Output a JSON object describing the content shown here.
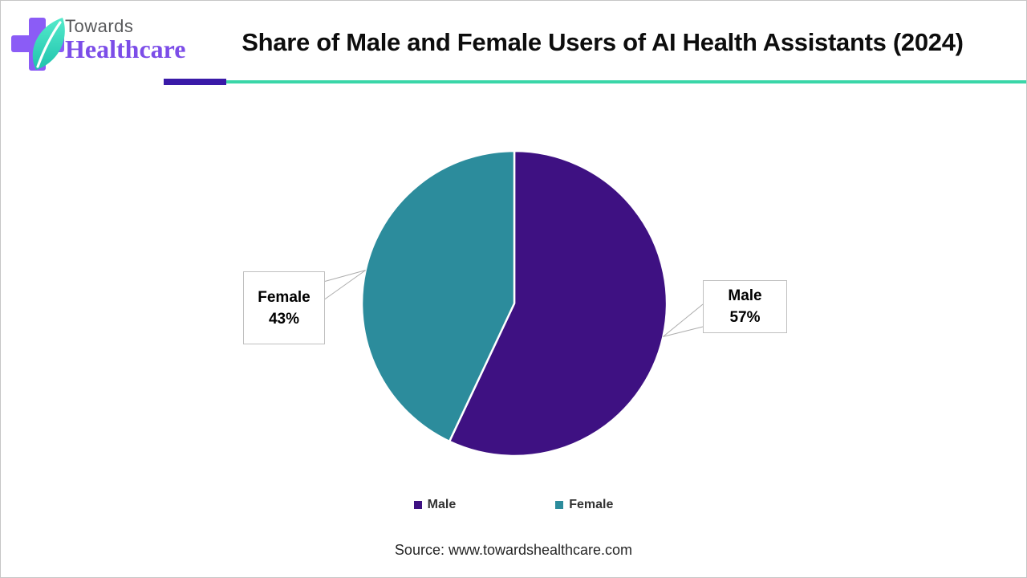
{
  "header": {
    "brand": {
      "top": "Towards",
      "bottom": "Healthcare"
    },
    "title": "Share of Male and Female Users of AI Health Assistants (2024)"
  },
  "chart_data": {
    "type": "pie",
    "title": "Share of Male and Female Users of AI Health Assistants (2024)",
    "categories": [
      "Male",
      "Female"
    ],
    "values": [
      57,
      43
    ],
    "unit": "%",
    "colors": [
      "#3E1182",
      "#2C8C9C"
    ],
    "start_angle_deg": 0,
    "direction": "clockwise",
    "legend_position": "bottom",
    "data_labels": [
      {
        "label": "Male",
        "value_text": "57%"
      },
      {
        "label": "Female",
        "value_text": "43%"
      }
    ]
  },
  "callouts": {
    "male": {
      "label": "Male",
      "value": "57%"
    },
    "female": {
      "label": "Female",
      "value": "43%"
    }
  },
  "legend": {
    "items": [
      {
        "label": "Male",
        "color": "#3E1182"
      },
      {
        "label": "Female",
        "color": "#2C8C9C"
      }
    ]
  },
  "source": {
    "text": "Source: www.towardshealthcare.com"
  },
  "colors": {
    "slice_male": "#3E1182",
    "slice_female": "#2C8C9C",
    "divider_purple": "#3A1AA8",
    "divider_teal": "#3AD6A8",
    "logo_cross": "#8B5CF6",
    "leaf_light": "#55EACB",
    "leaf_dark": "#1EC3AD",
    "brand_towards": "#58595B",
    "brand_healthcare": "#7C4DE8",
    "callout_border": "#BFBFBF",
    "leader_line": "#ADADAD",
    "title_text": "#0D0D0D",
    "legend_text": "#333333",
    "source_text": "#262626"
  }
}
